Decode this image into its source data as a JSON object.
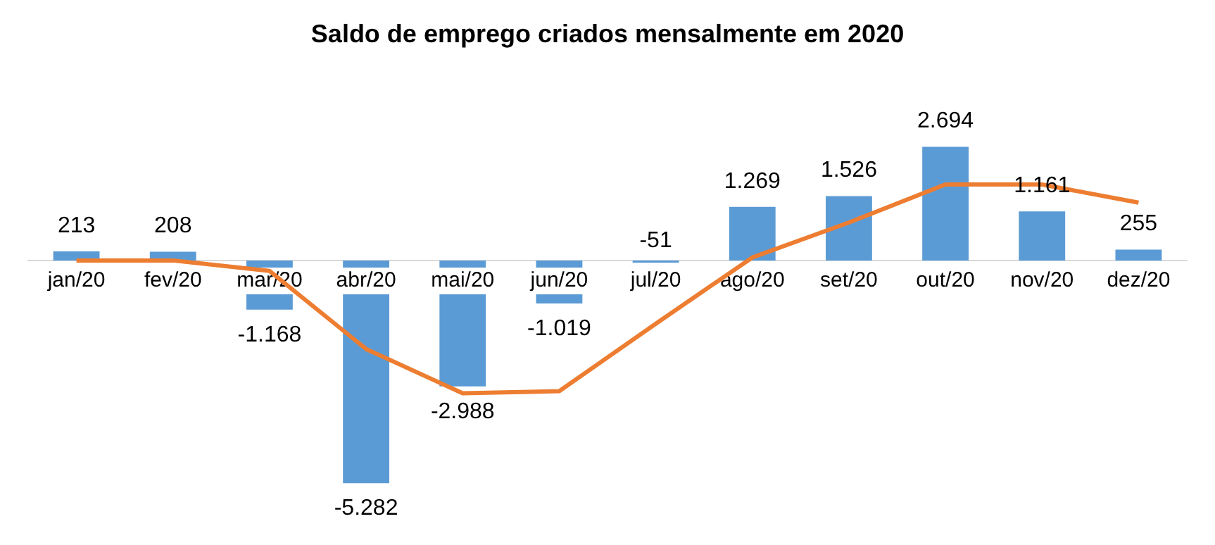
{
  "chart_data": {
    "type": "bar",
    "title": "Saldo de emprego criados mensalmente em 2020",
    "categories": [
      "jan/20",
      "fev/20",
      "mar/20",
      "abr/20",
      "mai/20",
      "jun/20",
      "jul/20",
      "ago/20",
      "set/20",
      "out/20",
      "nov/20",
      "dez/20"
    ],
    "series": [
      {
        "color": "#5b9bd5",
        "values": [
          213,
          208,
          -1168,
          -5282,
          -2988,
          -1019,
          -51,
          1269,
          1526,
          2694,
          1161,
          255
        ],
        "value_labels": [
          "213",
          "208",
          "-1.168",
          "-5.282",
          "-2.988",
          "-1.019",
          "-51",
          "1.269",
          "1.526",
          "2.694",
          "1.161",
          "255"
        ]
      },
      {
        "type": "line",
        "color": "#ed7d31",
        "values": [
          0,
          0,
          -250,
          -2100,
          -3150,
          -3100,
          -1500,
          70,
          900,
          1800,
          1800,
          1370
        ]
      }
    ],
    "tick_labels": "x",
    "grid": false,
    "legend": false,
    "marker": "none",
    "line_style": "solid"
  }
}
